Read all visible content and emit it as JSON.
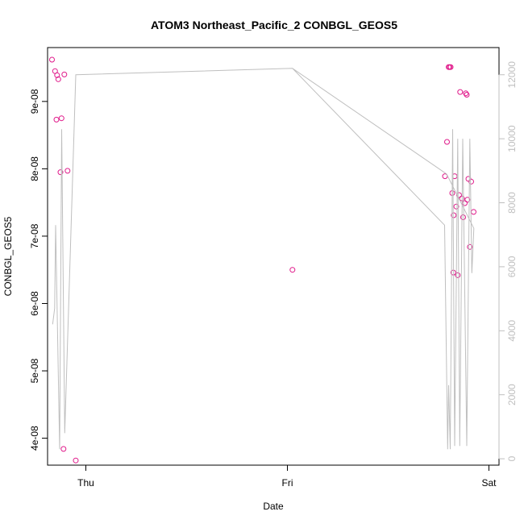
{
  "chart_data": {
    "type": "scatter",
    "title": "ATOM3 Northeast_Pacific_2 CONBGL_GEOS5",
    "xlabel": "Date",
    "ylabel": "CONBGL_GEOS5",
    "x_ticks": [
      "Thu",
      "Fri",
      "Sat"
    ],
    "y_ticks": [
      "4e-08",
      "5e-08",
      "6e-08",
      "7e-08",
      "8e-08",
      "9e-08"
    ],
    "y_tick_values": [
      4e-08,
      5e-08,
      6e-08,
      7e-08,
      8e-08,
      9e-08
    ],
    "y2_ticks": [
      "0",
      "2000",
      "4000",
      "6000",
      "8000",
      "10000",
      "12000"
    ],
    "y2_tick_values": [
      0,
      2000,
      4000,
      6000,
      8000,
      10000,
      12000
    ],
    "xlim": [
      -0.19,
      2.05
    ],
    "ylim": [
      3.6e-08,
      9.8e-08
    ],
    "y2lim": [
      -200,
      12850
    ],
    "colors": {
      "points": "#e0198a",
      "line": "#bfbfbf",
      "axis": "#000000",
      "right_axis": "#bfbfbf"
    },
    "series": [
      {
        "type": "points",
        "axis": "left",
        "points": [
          [
            -0.168,
            9.62e-08
          ],
          [
            -0.153,
            9.45e-08
          ],
          [
            -0.143,
            9.39e-08
          ],
          [
            -0.137,
            9.33e-08
          ],
          [
            -0.146,
            8.73e-08
          ],
          [
            -0.121,
            8.75e-08
          ],
          [
            -0.107,
            9.4e-08
          ],
          [
            -0.126,
            7.95e-08
          ],
          [
            -0.091,
            7.97e-08
          ],
          [
            -0.111,
            3.84e-08
          ],
          [
            -0.05,
            3.67e-08
          ],
          [
            1.025,
            6.5e-08
          ],
          [
            1.8,
            9.51e-08
          ],
          [
            1.805,
            9.51e-08
          ],
          [
            1.81,
            9.51e-08
          ],
          [
            1.792,
            8.4e-08
          ],
          [
            1.782,
            7.89e-08
          ],
          [
            1.818,
            7.64e-08
          ],
          [
            1.83,
            7.89e-08
          ],
          [
            1.825,
            7.31e-08
          ],
          [
            1.823,
            6.46e-08
          ],
          [
            1.838,
            7.44e-08
          ],
          [
            1.845,
            6.42e-08
          ],
          [
            1.857,
            9.14e-08
          ],
          [
            1.852,
            7.61e-08
          ],
          [
            1.866,
            7.56e-08
          ],
          [
            1.872,
            7.28e-08
          ],
          [
            1.88,
            7.49e-08
          ],
          [
            1.885,
            9.12e-08
          ],
          [
            1.89,
            9.1e-08
          ],
          [
            1.893,
            7.54e-08
          ],
          [
            1.898,
            7.85e-08
          ],
          [
            1.912,
            7.81e-08
          ],
          [
            1.905,
            6.84e-08
          ],
          [
            1.924,
            7.36e-08
          ]
        ]
      },
      {
        "type": "line",
        "axis": "right",
        "points": [
          [
            -0.165,
            4200
          ],
          [
            -0.155,
            4700
          ],
          [
            -0.15,
            7300
          ],
          [
            -0.13,
            300
          ],
          [
            -0.12,
            10300
          ],
          [
            -0.105,
            800
          ],
          [
            -0.05,
            12000
          ],
          [
            1.025,
            12200
          ],
          [
            1.78,
            7300
          ],
          [
            1.795,
            300
          ],
          [
            1.8,
            2300
          ],
          [
            1.808,
            300
          ],
          [
            1.82,
            10300
          ],
          [
            1.83,
            400
          ],
          [
            1.845,
            10000
          ],
          [
            1.855,
            400
          ],
          [
            1.87,
            10000
          ],
          [
            1.89,
            400
          ],
          [
            1.905,
            10000
          ],
          [
            1.915,
            5800
          ],
          [
            1.925,
            7200
          ],
          [
            1.925,
            7200
          ],
          [
            1.79,
            8900
          ],
          [
            1.025,
            12200
          ]
        ]
      }
    ]
  }
}
